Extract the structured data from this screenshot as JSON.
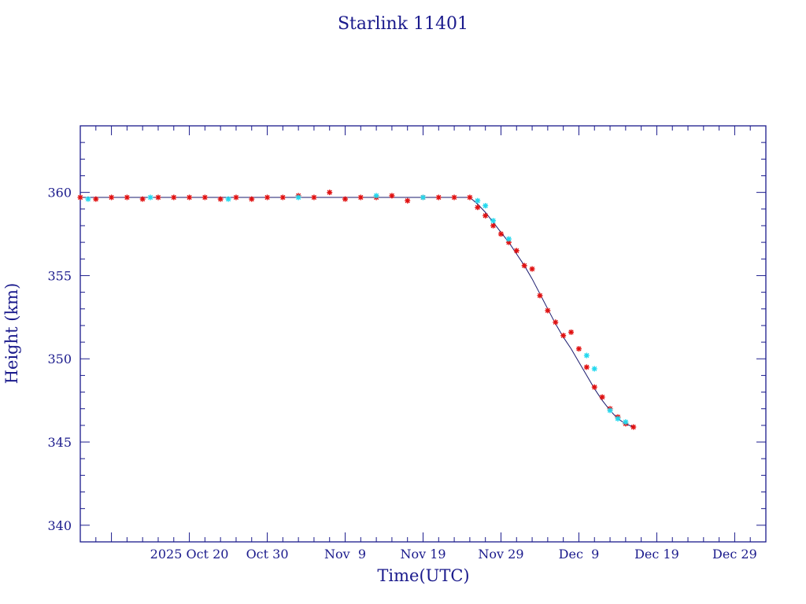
{
  "chart_data": {
    "type": "scatter",
    "title": "Starlink 11401",
    "xlabel": "Time(UTC)",
    "ylabel": "Height (km)",
    "xlim": [
      "2025-10-06",
      "2026-01-02"
    ],
    "ylim": [
      339,
      364
    ],
    "x_tick_labels": [
      {
        "date": "2025-10-20",
        "label": "2025 Oct 20"
      },
      {
        "date": "2025-10-30",
        "label": "Oct 30"
      },
      {
        "date": "2025-11-09",
        "label": "Nov  9"
      },
      {
        "date": "2025-11-19",
        "label": "Nov 19"
      },
      {
        "date": "2025-11-29",
        "label": "Nov 29"
      },
      {
        "date": "2025-12-09",
        "label": "Dec  9"
      },
      {
        "date": "2025-12-19",
        "label": "Dec 19"
      },
      {
        "date": "2025-12-29",
        "label": "Dec 29"
      }
    ],
    "y_tick_labels": [
      340,
      345,
      350,
      355,
      360
    ],
    "grid": false,
    "colors": {
      "axes": "#1a1a8c",
      "line": "#1a1a6e",
      "series_a": "#e01010",
      "series_b": "#22d8ee"
    },
    "line": {
      "x": [
        "2025-10-06",
        "2025-10-16",
        "2025-10-26",
        "2025-11-05",
        "2025-11-15",
        "2025-11-25",
        "2025-11-26",
        "2025-11-27",
        "2025-11-28",
        "2025-11-29",
        "2025-11-30",
        "2025-12-01",
        "2025-12-02",
        "2025-12-03",
        "2025-12-04",
        "2025-12-05",
        "2025-12-06",
        "2025-12-07",
        "2025-12-08",
        "2025-12-09",
        "2025-12-10",
        "2025-12-11",
        "2025-12-12",
        "2025-12-13",
        "2025-12-14",
        "2025-12-15",
        "2025-12-16"
      ],
      "y": [
        359.7,
        359.7,
        359.7,
        359.7,
        359.7,
        359.7,
        359.3,
        358.8,
        358.2,
        357.6,
        357.0,
        356.3,
        355.6,
        354.8,
        353.9,
        353.0,
        352.1,
        351.3,
        350.6,
        349.8,
        349.0,
        348.2,
        347.5,
        346.9,
        346.4,
        346.1,
        345.9
      ]
    },
    "series": [
      {
        "marker": "star",
        "color": "#e01010",
        "x": [
          "2025-10-06",
          "2025-10-08",
          "2025-10-10",
          "2025-10-12",
          "2025-10-14",
          "2025-10-16",
          "2025-10-18",
          "2025-10-20",
          "2025-10-22",
          "2025-10-24",
          "2025-10-26",
          "2025-10-28",
          "2025-10-30",
          "2025-11-01",
          "2025-11-03",
          "2025-11-05",
          "2025-11-07",
          "2025-11-09",
          "2025-11-11",
          "2025-11-13",
          "2025-11-15",
          "2025-11-17",
          "2025-11-19",
          "2025-11-21",
          "2025-11-23",
          "2025-11-25",
          "2025-11-26",
          "2025-11-27",
          "2025-11-28",
          "2025-11-29",
          "2025-11-30",
          "2025-12-01",
          "2025-12-02",
          "2025-12-03",
          "2025-12-04",
          "2025-12-05",
          "2025-12-06",
          "2025-12-07",
          "2025-12-08",
          "2025-12-09",
          "2025-12-10",
          "2025-12-11",
          "2025-12-12",
          "2025-12-13",
          "2025-12-14",
          "2025-12-15",
          "2025-12-16"
        ],
        "y": [
          359.7,
          359.6,
          359.7,
          359.7,
          359.6,
          359.7,
          359.7,
          359.7,
          359.7,
          359.6,
          359.7,
          359.6,
          359.7,
          359.7,
          359.8,
          359.7,
          360.0,
          359.6,
          359.7,
          359.7,
          359.8,
          359.5,
          359.7,
          359.7,
          359.7,
          359.7,
          359.1,
          358.6,
          358.0,
          357.5,
          357.0,
          356.5,
          355.6,
          355.4,
          353.8,
          352.9,
          352.2,
          351.4,
          351.6,
          350.6,
          349.5,
          348.3,
          347.7,
          347.0,
          346.5,
          346.1,
          345.9
        ]
      },
      {
        "marker": "star",
        "color": "#22d8ee",
        "x": [
          "2025-10-07",
          "2025-10-15",
          "2025-10-25",
          "2025-11-03",
          "2025-11-13",
          "2025-11-19",
          "2025-11-26",
          "2025-11-27",
          "2025-11-28",
          "2025-11-30",
          "2025-12-10",
          "2025-12-11",
          "2025-12-13",
          "2025-12-14",
          "2025-12-15"
        ],
        "y": [
          359.6,
          359.7,
          359.6,
          359.7,
          359.8,
          359.7,
          359.5,
          359.2,
          358.3,
          357.2,
          350.2,
          349.4,
          346.9,
          346.4,
          346.2
        ]
      }
    ]
  }
}
